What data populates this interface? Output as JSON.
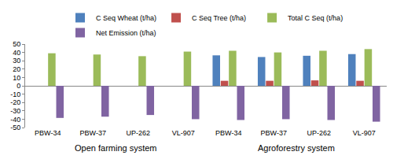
{
  "chart_data": {
    "type": "bar",
    "categories": [
      "PBW-34",
      "PBW-37",
      "UP-262",
      "VL-907",
      "PBW-34",
      "PBW-37",
      "UP-262",
      "VL-907"
    ],
    "groups": [
      {
        "label": "Open farming system",
        "count": 4
      },
      {
        "label": "Agroforestry system",
        "count": 4
      }
    ],
    "series": [
      {
        "name": "C Seq Wheat (t/ha)",
        "color": "#4f81bd",
        "values": [
          null,
          null,
          null,
          null,
          36.5,
          34.5,
          36,
          38
        ]
      },
      {
        "name": "C Seq Tree (t/ha)",
        "color": "#c0504d",
        "values": [
          null,
          null,
          null,
          null,
          6,
          6,
          6.5,
          6
        ]
      },
      {
        "name": "Total C Seq (t/ha)",
        "color": "#9bbb59",
        "values": [
          39,
          37.5,
          35.5,
          41,
          42,
          40,
          42,
          44
        ]
      },
      {
        "name": "Net Emission (t/ha)",
        "color": "#8064a2",
        "values": [
          -38.5,
          -37,
          -35,
          -40,
          -41,
          -40,
          -41,
          -43
        ]
      }
    ],
    "ylim": [
      -50,
      50
    ],
    "yticks": [
      -50,
      -40,
      -30,
      -20,
      -10,
      0,
      10,
      20,
      30,
      40,
      50
    ],
    "grid": false,
    "legend": "top"
  }
}
